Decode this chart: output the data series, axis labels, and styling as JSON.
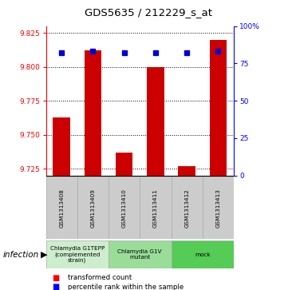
{
  "title": "GDS5635 / 212229_s_at",
  "samples": [
    "GSM1313408",
    "GSM1313409",
    "GSM1313410",
    "GSM1313411",
    "GSM1313412",
    "GSM1313413"
  ],
  "bar_heights": [
    9.763,
    9.812,
    9.737,
    9.8,
    9.727,
    9.82
  ],
  "percentile_ranks": [
    82.0,
    83.0,
    82.0,
    82.0,
    82.0,
    83.0
  ],
  "ylim_left": [
    9.72,
    9.83
  ],
  "ylim_right": [
    0,
    100
  ],
  "yticks_left": [
    9.725,
    9.75,
    9.775,
    9.8,
    9.825
  ],
  "yticks_right": [
    0,
    25,
    50,
    75,
    100
  ],
  "ytick_labels_right": [
    "0",
    "25",
    "50",
    "75",
    "100%"
  ],
  "bar_color": "#cc0000",
  "percentile_color": "#0000cc",
  "groups": [
    {
      "label": "Chlamydia G1TEPP\n(complemented\nstrain)",
      "samples": [
        0,
        1
      ],
      "color": "#cceecc"
    },
    {
      "label": "Chlamydia G1V\nmutant",
      "samples": [
        2,
        3
      ],
      "color": "#99dd99"
    },
    {
      "label": "mock",
      "samples": [
        4,
        5
      ],
      "color": "#55cc55"
    }
  ],
  "infection_label": "infection",
  "legend_red": "transformed count",
  "legend_blue": "percentile rank within the sample",
  "bar_width": 0.55,
  "base_value": 9.72
}
